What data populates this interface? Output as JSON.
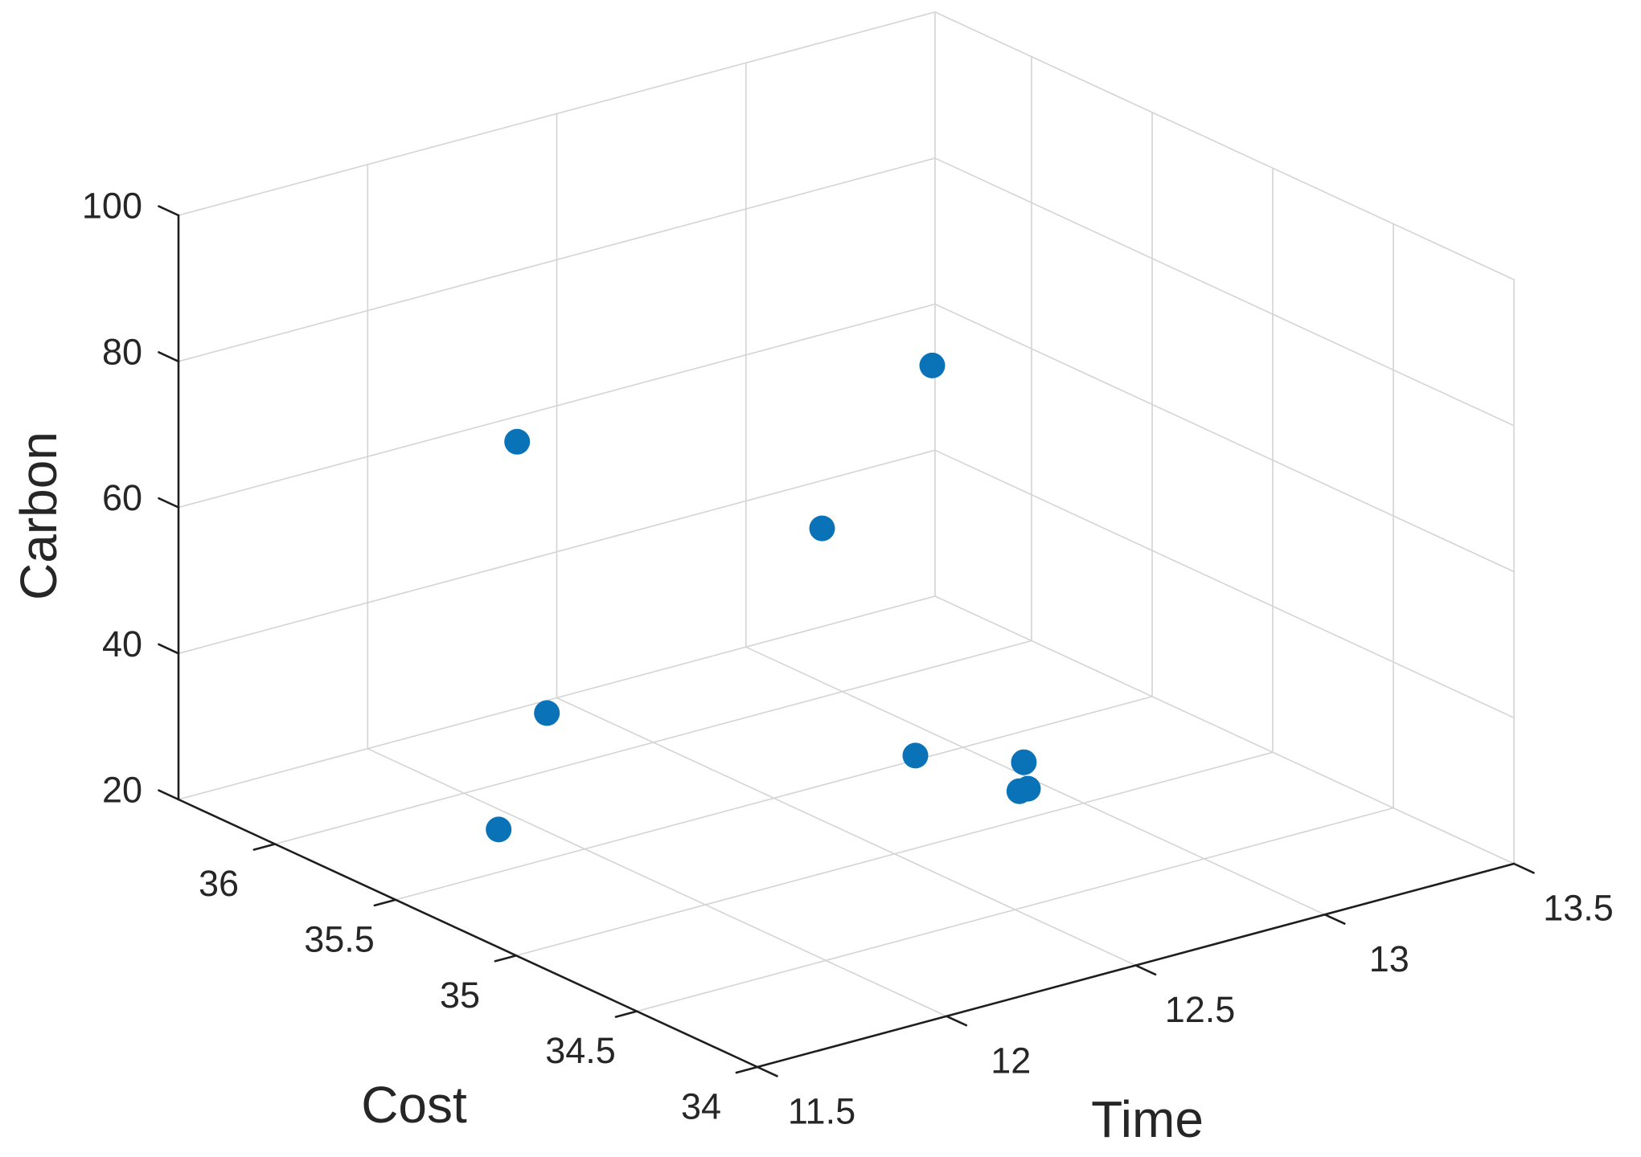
{
  "chart_data": {
    "type": "scatter",
    "projection": "3d",
    "title": "",
    "marker_color": "#0a73b8",
    "axis_color": "#1e1e1e",
    "grid_color": "#d4d4d4",
    "text_color": "#262626",
    "background": "#ffffff",
    "grid": true,
    "legend": null,
    "axes": {
      "x": {
        "label": "Cost",
        "ticks": [
          36,
          35.5,
          35,
          34.5,
          34
        ],
        "lim": [
          34,
          36.4
        ]
      },
      "y": {
        "label": "Time",
        "ticks": [
          11.5,
          12,
          12.5,
          13,
          13.5
        ],
        "lim": [
          11.5,
          13.5
        ]
      },
      "z": {
        "label": "Carbon",
        "ticks": [
          20,
          40,
          60,
          80,
          100
        ],
        "lim": [
          20,
          100
        ]
      }
    },
    "points": [
      {
        "cost": 35.78,
        "time": 12.0,
        "carbon": 71.5
      },
      {
        "cost": 35.0,
        "time": 12.6,
        "carbon": 85.5
      },
      {
        "cost": 35.3,
        "time": 12.5,
        "carbon": 60.0
      },
      {
        "cost": 35.5,
        "time": 11.9,
        "carbon": 40.0
      },
      {
        "cost": 35.07,
        "time": 12.6,
        "carbon": 31.0
      },
      {
        "cost": 34.95,
        "time": 12.81,
        "carbon": 29.0
      },
      {
        "cost": 35.0,
        "time": 12.83,
        "carbon": 24.0
      },
      {
        "cost": 34.98,
        "time": 12.84,
        "carbon": 24.5
      },
      {
        "cost": 35.7,
        "time": 11.9,
        "carbon": 21.0
      }
    ]
  }
}
